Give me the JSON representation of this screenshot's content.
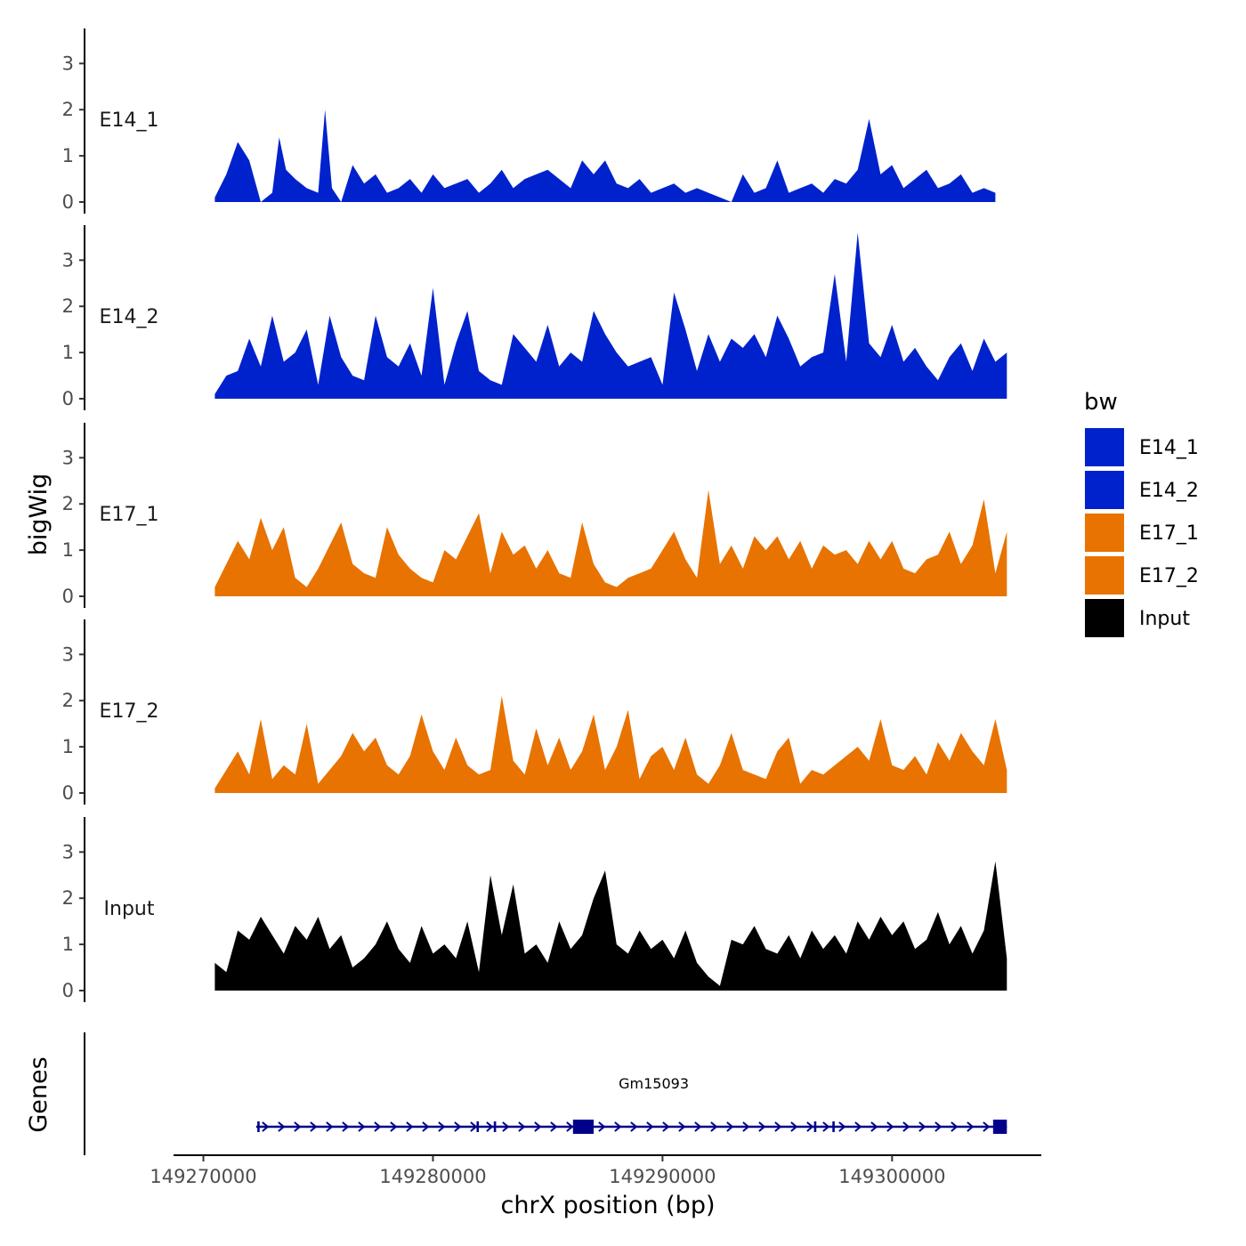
{
  "chart_data": {
    "type": "area",
    "title": "",
    "ylabel": "bigWig",
    "xlabel": "chrX position (bp)",
    "xlim": [
      149268700,
      149306500
    ],
    "ylim": [
      0,
      3.7
    ],
    "x_ticks": [
      149270000,
      149280000,
      149290000,
      149300000
    ],
    "x_tick_labels": [
      "149270000",
      "149280000",
      "149290000",
      "149300000"
    ],
    "y_ticks": [
      0,
      1,
      2,
      3
    ],
    "y_tick_labels": [
      "0",
      "1",
      "2",
      "3"
    ],
    "legend": {
      "title": "bw",
      "position": "right",
      "entries": [
        {
          "label": "E14_1",
          "color": "#0022CC"
        },
        {
          "label": "E14_2",
          "color": "#0022CC"
        },
        {
          "label": "E17_1",
          "color": "#E87300"
        },
        {
          "label": "E17_2",
          "color": "#E87300"
        },
        {
          "label": "Input",
          "color": "#000000"
        }
      ]
    },
    "series": [
      {
        "name": "E14_1",
        "color": "#0022CC",
        "x": [
          149270500,
          149271000,
          149271500,
          149272000,
          149272500,
          149273000,
          149273300,
          149273600,
          149274000,
          149274500,
          149275000,
          149275300,
          149275600,
          149276000,
          149276500,
          149277000,
          149277500,
          149278000,
          149278500,
          149279000,
          149279500,
          149280000,
          149280500,
          149281000,
          149281500,
          149282000,
          149282500,
          149283000,
          149283500,
          149284000,
          149284500,
          149285000,
          149285500,
          149286000,
          149286500,
          149287000,
          149287500,
          149288000,
          149288500,
          149289000,
          149289500,
          149290000,
          149290500,
          149291000,
          149291500,
          149292000,
          149292500,
          149293000,
          149293500,
          149294000,
          149294500,
          149295000,
          149295500,
          149296000,
          149296500,
          149297000,
          149297500,
          149298000,
          149298500,
          149299000,
          149299500,
          149300000,
          149300500,
          149301000,
          149301500,
          149302000,
          149302500,
          149303000,
          149303500,
          149304000,
          149304500
        ],
        "values": [
          0.1,
          0.6,
          1.3,
          0.9,
          0,
          0.2,
          1.4,
          0.7,
          0.5,
          0.3,
          0.2,
          2.0,
          0.3,
          0,
          0.8,
          0.4,
          0.6,
          0.2,
          0.3,
          0.5,
          0.2,
          0.6,
          0.3,
          0.4,
          0.5,
          0.2,
          0.4,
          0.7,
          0.3,
          0.5,
          0.6,
          0.7,
          0.5,
          0.3,
          0.9,
          0.6,
          0.9,
          0.4,
          0.3,
          0.5,
          0.2,
          0.3,
          0.4,
          0.2,
          0.3,
          0.2,
          0.1,
          0,
          0.6,
          0.2,
          0.3,
          0.9,
          0.2,
          0.3,
          0.4,
          0.2,
          0.5,
          0.4,
          0.7,
          1.8,
          0.6,
          0.8,
          0.3,
          0.5,
          0.7,
          0.3,
          0.4,
          0.6,
          0.2,
          0.3,
          0.2
        ]
      },
      {
        "name": "E14_2",
        "color": "#0022CC",
        "x": [
          149270500,
          149271000,
          149271500,
          149272000,
          149272500,
          149273000,
          149273500,
          149274000,
          149274500,
          149275000,
          149275500,
          149276000,
          149276500,
          149277000,
          149277500,
          149278000,
          149278500,
          149279000,
          149279500,
          149280000,
          149280500,
          149281000,
          149281500,
          149282000,
          149282500,
          149283000,
          149283500,
          149284000,
          149284500,
          149285000,
          149285500,
          149286000,
          149286500,
          149287000,
          149287500,
          149288000,
          149288500,
          149289000,
          149289500,
          149290000,
          149290500,
          149291000,
          149291500,
          149292000,
          149292500,
          149293000,
          149293500,
          149294000,
          149294500,
          149295000,
          149295500,
          149296000,
          149296500,
          149297000,
          149297500,
          149298000,
          149298500,
          149299000,
          149299500,
          149300000,
          149300500,
          149301000,
          149301500,
          149302000,
          149302500,
          149303000,
          149303500,
          149304000,
          149304500,
          149305000
        ],
        "values": [
          0.1,
          0.5,
          0.6,
          1.3,
          0.7,
          1.8,
          0.8,
          1.0,
          1.5,
          0.3,
          1.8,
          0.9,
          0.5,
          0.4,
          1.8,
          0.9,
          0.7,
          1.2,
          0.5,
          2.4,
          0.3,
          1.2,
          1.9,
          0.6,
          0.4,
          0.3,
          1.4,
          1.1,
          0.8,
          1.6,
          0.7,
          1.0,
          0.8,
          1.9,
          1.4,
          1.0,
          0.7,
          0.8,
          0.9,
          0.3,
          2.3,
          1.5,
          0.6,
          1.4,
          0.8,
          1.3,
          1.1,
          1.4,
          0.9,
          1.8,
          1.3,
          0.7,
          0.9,
          1.0,
          2.7,
          0.8,
          3.6,
          1.2,
          0.9,
          1.6,
          0.8,
          1.1,
          0.7,
          0.4,
          0.9,
          1.2,
          0.6,
          1.3,
          0.8,
          1.0
        ]
      },
      {
        "name": "E17_1",
        "color": "#E87300",
        "x": [
          149270500,
          149271000,
          149271500,
          149272000,
          149272500,
          149273000,
          149273500,
          149274000,
          149274500,
          149275000,
          149275500,
          149276000,
          149276500,
          149277000,
          149277500,
          149278000,
          149278500,
          149279000,
          149279500,
          149280000,
          149280500,
          149281000,
          149281500,
          149282000,
          149282500,
          149283000,
          149283500,
          149284000,
          149284500,
          149285000,
          149285500,
          149286000,
          149286500,
          149287000,
          149287500,
          149288000,
          149288500,
          149289000,
          149289500,
          149290000,
          149290500,
          149291000,
          149291500,
          149292000,
          149292500,
          149293000,
          149293500,
          149294000,
          149294500,
          149295000,
          149295500,
          149296000,
          149296500,
          149297000,
          149297500,
          149298000,
          149298500,
          149299000,
          149299500,
          149300000,
          149300500,
          149301000,
          149301500,
          149302000,
          149302500,
          149303000,
          149303500,
          149304000,
          149304500,
          149305000
        ],
        "values": [
          0.2,
          0.7,
          1.2,
          0.8,
          1.7,
          1.0,
          1.5,
          0.4,
          0.2,
          0.6,
          1.1,
          1.6,
          0.7,
          0.5,
          0.4,
          1.5,
          0.9,
          0.6,
          0.4,
          0.3,
          1.0,
          0.8,
          1.3,
          1.8,
          0.5,
          1.4,
          0.9,
          1.1,
          0.6,
          1.0,
          0.5,
          0.4,
          1.6,
          0.7,
          0.3,
          0.2,
          0.4,
          0.5,
          0.6,
          1.0,
          1.4,
          0.8,
          0.4,
          2.3,
          0.7,
          1.1,
          0.6,
          1.3,
          1.0,
          1.3,
          0.8,
          1.2,
          0.6,
          1.1,
          0.9,
          1.0,
          0.7,
          1.2,
          0.8,
          1.2,
          0.6,
          0.5,
          0.8,
          0.9,
          1.4,
          0.7,
          1.1,
          2.1,
          0.5,
          1.4
        ]
      },
      {
        "name": "E17_2",
        "color": "#E87300",
        "x": [
          149270500,
          149271000,
          149271500,
          149272000,
          149272500,
          149273000,
          149273500,
          149274000,
          149274500,
          149275000,
          149275500,
          149276000,
          149276500,
          149277000,
          149277500,
          149278000,
          149278500,
          149279000,
          149279500,
          149280000,
          149280500,
          149281000,
          149281500,
          149282000,
          149282500,
          149283000,
          149283500,
          149284000,
          149284500,
          149285000,
          149285500,
          149286000,
          149286500,
          149287000,
          149287500,
          149288000,
          149288500,
          149289000,
          149289500,
          149290000,
          149290500,
          149291000,
          149291500,
          149292000,
          149292500,
          149293000,
          149293500,
          149294000,
          149294500,
          149295000,
          149295500,
          149296000,
          149296500,
          149297000,
          149297500,
          149298000,
          149298500,
          149299000,
          149299500,
          149300000,
          149300500,
          149301000,
          149301500,
          149302000,
          149302500,
          149303000,
          149303500,
          149304000,
          149304500,
          149305000
        ],
        "values": [
          0.1,
          0.5,
          0.9,
          0.4,
          1.6,
          0.3,
          0.6,
          0.4,
          1.5,
          0.2,
          0.5,
          0.8,
          1.3,
          0.9,
          1.2,
          0.6,
          0.4,
          0.8,
          1.7,
          0.9,
          0.5,
          1.2,
          0.6,
          0.4,
          0.5,
          2.1,
          0.7,
          0.4,
          1.4,
          0.6,
          1.2,
          0.5,
          0.9,
          1.7,
          0.5,
          1.0,
          1.8,
          0.3,
          0.8,
          1.0,
          0.5,
          1.2,
          0.4,
          0.2,
          0.6,
          1.3,
          0.5,
          0.4,
          0.3,
          0.9,
          1.2,
          0.2,
          0.5,
          0.4,
          0.6,
          0.8,
          1.0,
          0.7,
          1.6,
          0.6,
          0.5,
          0.8,
          0.4,
          1.1,
          0.7,
          1.3,
          0.9,
          0.6,
          1.6,
          0.5
        ]
      },
      {
        "name": "Input",
        "color": "#000000",
        "x": [
          149270500,
          149271000,
          149271500,
          149272000,
          149272500,
          149273000,
          149273500,
          149274000,
          149274500,
          149275000,
          149275500,
          149276000,
          149276500,
          149277000,
          149277500,
          149278000,
          149278500,
          149279000,
          149279500,
          149280000,
          149280500,
          149281000,
          149281500,
          149282000,
          149282500,
          149283000,
          149283500,
          149284000,
          149284500,
          149285000,
          149285500,
          149286000,
          149286500,
          149287000,
          149287500,
          149288000,
          149288500,
          149289000,
          149289500,
          149290000,
          149290500,
          149291000,
          149291500,
          149292000,
          149292500,
          149293000,
          149293500,
          149294000,
          149294500,
          149295000,
          149295500,
          149296000,
          149296500,
          149297000,
          149297500,
          149298000,
          149298500,
          149299000,
          149299500,
          149300000,
          149300500,
          149301000,
          149301500,
          149302000,
          149302500,
          149303000,
          149303500,
          149304000,
          149304500,
          149305000
        ],
        "values": [
          0.6,
          0.4,
          1.3,
          1.1,
          1.6,
          1.2,
          0.8,
          1.4,
          1.1,
          1.6,
          0.9,
          1.2,
          0.5,
          0.7,
          1.0,
          1.5,
          0.9,
          0.6,
          1.4,
          0.8,
          1.0,
          0.7,
          1.5,
          0.4,
          2.5,
          1.2,
          2.3,
          0.8,
          1.0,
          0.6,
          1.5,
          0.9,
          1.2,
          2.0,
          2.6,
          1.0,
          0.8,
          1.3,
          0.9,
          1.1,
          0.7,
          1.3,
          0.6,
          0.3,
          0.1,
          1.1,
          1.0,
          1.4,
          0.9,
          0.8,
          1.2,
          0.7,
          1.3,
          0.9,
          1.2,
          0.8,
          1.5,
          1.1,
          1.6,
          1.2,
          1.5,
          0.9,
          1.1,
          1.7,
          1.0,
          1.4,
          0.8,
          1.3,
          2.8,
          0.7
        ]
      }
    ],
    "genes": [
      {
        "name": "Gm15093",
        "color": "#00008B",
        "start": 149272300,
        "end": 149305000,
        "strand": "+",
        "exons": [
          [
            149272350,
            149272450
          ],
          [
            149281900,
            149282000
          ],
          [
            149282650,
            149282750
          ],
          [
            149286100,
            149287000
          ],
          [
            149296600,
            149296700
          ],
          [
            149297400,
            149297500
          ],
          [
            149304400,
            149305000
          ]
        ]
      }
    ],
    "genes_track_label": "Genes"
  }
}
